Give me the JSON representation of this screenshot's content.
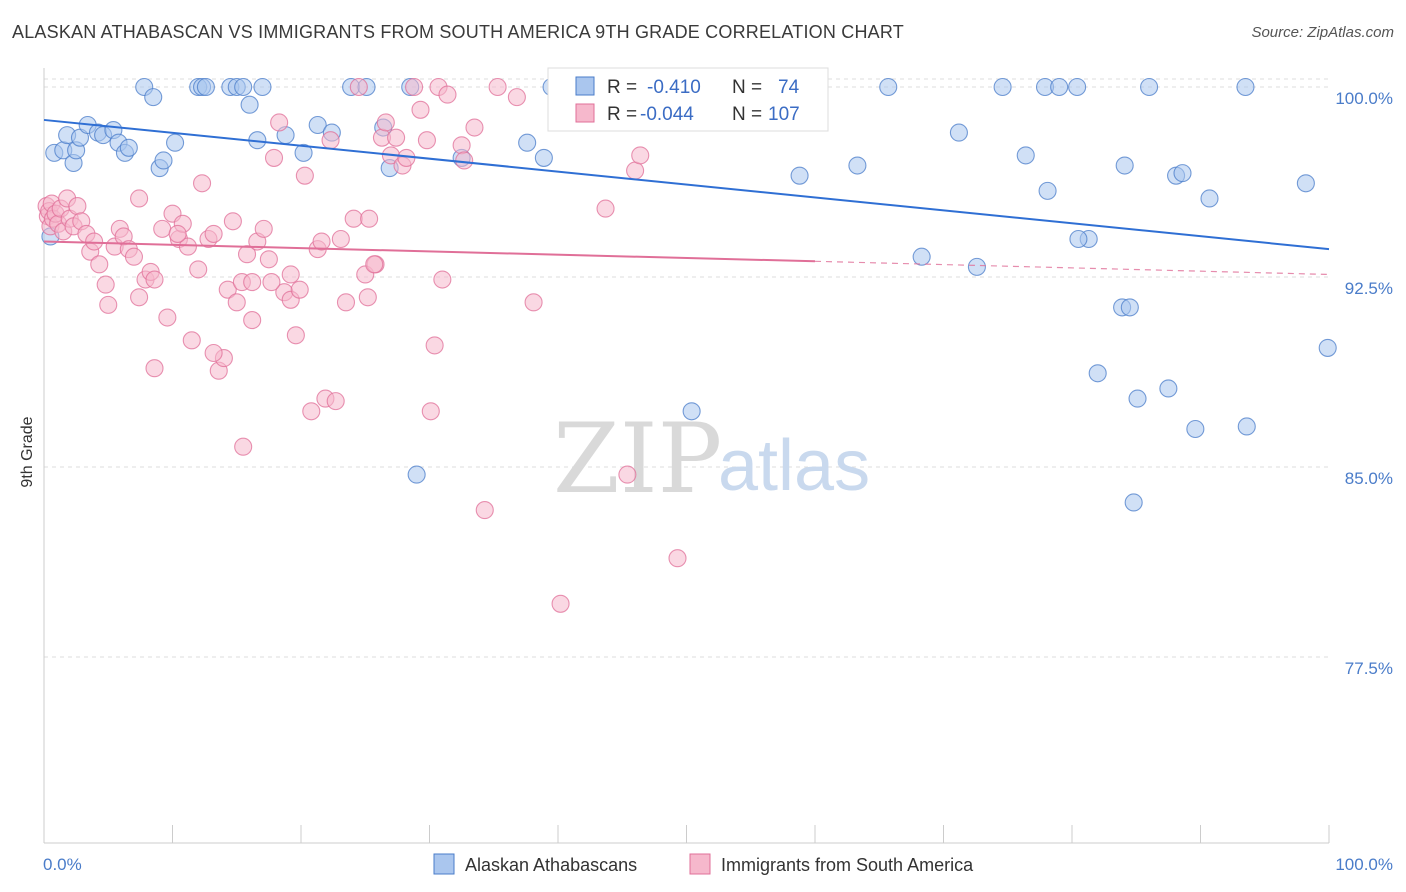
{
  "header": {
    "title": "ALASKAN ATHABASCAN VS IMMIGRANTS FROM SOUTH AMERICA 9TH GRADE CORRELATION CHART",
    "source": "Source: ZipAtlas.com"
  },
  "watermark": {
    "zip": "ZIP",
    "atlas": "atlas"
  },
  "colors": {
    "blue": "#4a7cc9",
    "blue_fill": "#aac6ee",
    "blue_line": "#2f6fd4",
    "pink": "#e06f98",
    "pink_fill": "#f6b8cc",
    "pink_line": "#e06f98",
    "grid": "#dddddd"
  },
  "stats": {
    "blue": {
      "r_label": "R =",
      "r_value": "-0.410",
      "n_label": "N =",
      "n_value": "74"
    },
    "pink": {
      "r_label": "R =",
      "r_value": "-0.044",
      "n_label": "N =",
      "n_value": "107"
    }
  },
  "chart_data": {
    "type": "scatter",
    "xlabel": "",
    "ylabel": "9th Grade",
    "xlim": [
      0,
      100
    ],
    "ylim": [
      70.0,
      100.7
    ],
    "x_tick_labels": [
      "0.0%",
      "100.0%"
    ],
    "y_ticks": [
      {
        "value": 100.0,
        "label": "100.0%"
      },
      {
        "value": 92.5,
        "label": "92.5%"
      },
      {
        "value": 85.0,
        "label": "85.0%"
      },
      {
        "value": 77.5,
        "label": "77.5%"
      }
    ],
    "grid": true,
    "legend_position": "bottom-center",
    "series": [
      {
        "name": "Alaskan Athabascans",
        "color": "#4a7cc9",
        "trend": {
          "x0": 0,
          "y0": 98.7,
          "x1": 100,
          "y1": 93.6,
          "solid_until": 100
        },
        "points": [
          [
            0.5,
            94.1
          ],
          [
            0.8,
            97.4
          ],
          [
            1.5,
            97.5
          ],
          [
            1.8,
            98.1
          ],
          [
            2.3,
            97.0
          ],
          [
            2.5,
            97.5
          ],
          [
            2.8,
            98.0
          ],
          [
            3.4,
            98.5
          ],
          [
            4.2,
            98.2
          ],
          [
            4.6,
            98.1
          ],
          [
            5.4,
            98.3
          ],
          [
            5.8,
            97.8
          ],
          [
            6.3,
            97.4
          ],
          [
            6.6,
            97.6
          ],
          [
            7.8,
            100.0
          ],
          [
            8.5,
            99.6
          ],
          [
            9.0,
            96.8
          ],
          [
            9.3,
            97.1
          ],
          [
            10.2,
            97.8
          ],
          [
            12.0,
            100.0
          ],
          [
            12.3,
            100.0
          ],
          [
            12.6,
            100.0
          ],
          [
            14.5,
            100.0
          ],
          [
            15.0,
            100.0
          ],
          [
            15.5,
            100.0
          ],
          [
            16.0,
            99.3
          ],
          [
            17.0,
            100.0
          ],
          [
            16.6,
            97.9
          ],
          [
            18.8,
            98.1
          ],
          [
            20.2,
            97.4
          ],
          [
            21.3,
            98.5
          ],
          [
            22.4,
            98.2
          ],
          [
            23.9,
            100.0
          ],
          [
            25.1,
            100.0
          ],
          [
            26.4,
            98.4
          ],
          [
            26.9,
            96.8
          ],
          [
            28.5,
            100.0
          ],
          [
            32.5,
            97.2
          ],
          [
            37.6,
            97.8
          ],
          [
            38.9,
            97.2
          ],
          [
            39.5,
            100.0
          ],
          [
            41.7,
            100.0
          ],
          [
            53.2,
            100.0
          ],
          [
            58.8,
            96.5
          ],
          [
            63.3,
            96.9
          ],
          [
            71.2,
            98.2
          ],
          [
            74.6,
            100.0
          ],
          [
            77.9,
            100.0
          ],
          [
            79.0,
            100.0
          ],
          [
            80.4,
            100.0
          ],
          [
            84.1,
            96.9
          ],
          [
            88.1,
            96.5
          ],
          [
            90.7,
            95.6
          ],
          [
            93.5,
            100.0
          ],
          [
            98.2,
            96.2
          ],
          [
            29.0,
            84.7
          ],
          [
            50.4,
            87.2
          ],
          [
            65.7,
            100.0
          ],
          [
            76.4,
            97.3
          ],
          [
            78.1,
            95.9
          ],
          [
            72.6,
            92.9
          ],
          [
            68.3,
            93.3
          ],
          [
            81.3,
            94.0
          ],
          [
            86.0,
            100.0
          ],
          [
            83.9,
            91.3
          ],
          [
            84.5,
            91.3
          ],
          [
            82.0,
            88.7
          ],
          [
            85.1,
            87.7
          ],
          [
            89.6,
            86.5
          ],
          [
            87.5,
            88.1
          ],
          [
            93.6,
            86.6
          ],
          [
            80.5,
            94.0
          ],
          [
            99.9,
            89.7
          ],
          [
            88.6,
            96.6
          ],
          [
            84.8,
            83.6
          ]
        ]
      },
      {
        "name": "Immigrants from South America",
        "color": "#e06f98",
        "trend": {
          "x0": 0,
          "y0": 93.9,
          "x1": 100,
          "y1": 92.6,
          "solid_until": 60
        },
        "points": [
          [
            0.2,
            95.3
          ],
          [
            0.3,
            94.9
          ],
          [
            0.4,
            95.1
          ],
          [
            0.5,
            94.5
          ],
          [
            0.6,
            95.4
          ],
          [
            0.7,
            94.8
          ],
          [
            0.9,
            95.0
          ],
          [
            1.1,
            94.6
          ],
          [
            1.3,
            95.2
          ],
          [
            1.5,
            94.3
          ],
          [
            1.8,
            95.6
          ],
          [
            2.0,
            94.8
          ],
          [
            2.3,
            94.5
          ],
          [
            2.6,
            95.3
          ],
          [
            2.9,
            94.7
          ],
          [
            3.3,
            94.2
          ],
          [
            3.6,
            93.5
          ],
          [
            3.9,
            93.9
          ],
          [
            4.3,
            93.0
          ],
          [
            4.8,
            92.2
          ],
          [
            5.0,
            91.4
          ],
          [
            5.5,
            93.7
          ],
          [
            5.9,
            94.4
          ],
          [
            6.2,
            94.1
          ],
          [
            6.6,
            93.6
          ],
          [
            7.0,
            93.3
          ],
          [
            7.4,
            91.7
          ],
          [
            7.9,
            92.4
          ],
          [
            8.3,
            92.7
          ],
          [
            8.6,
            88.9
          ],
          [
            9.2,
            94.4
          ],
          [
            9.6,
            90.9
          ],
          [
            10.0,
            95.0
          ],
          [
            10.5,
            94.0
          ],
          [
            10.8,
            94.6
          ],
          [
            11.2,
            93.7
          ],
          [
            11.5,
            90.0
          ],
          [
            12.0,
            92.8
          ],
          [
            12.3,
            96.2
          ],
          [
            12.8,
            94.0
          ],
          [
            13.2,
            94.2
          ],
          [
            13.6,
            88.8
          ],
          [
            14.0,
            89.3
          ],
          [
            14.3,
            92.0
          ],
          [
            14.7,
            94.7
          ],
          [
            15.0,
            91.5
          ],
          [
            15.4,
            92.3
          ],
          [
            15.8,
            93.4
          ],
          [
            16.2,
            92.3
          ],
          [
            16.6,
            93.9
          ],
          [
            17.1,
            94.4
          ],
          [
            17.5,
            93.2
          ],
          [
            17.9,
            97.2
          ],
          [
            18.3,
            98.6
          ],
          [
            18.7,
            91.9
          ],
          [
            19.2,
            91.6
          ],
          [
            19.6,
            90.2
          ],
          [
            19.9,
            92.0
          ],
          [
            20.3,
            96.5
          ],
          [
            20.8,
            87.2
          ],
          [
            21.3,
            93.6
          ],
          [
            21.6,
            93.9
          ],
          [
            21.9,
            87.7
          ],
          [
            22.3,
            97.9
          ],
          [
            22.7,
            87.6
          ],
          [
            23.1,
            94.0
          ],
          [
            23.5,
            91.5
          ],
          [
            24.1,
            94.8
          ],
          [
            24.5,
            100.0
          ],
          [
            25.0,
            92.6
          ],
          [
            25.3,
            94.8
          ],
          [
            25.8,
            93.0
          ],
          [
            26.3,
            98.0
          ],
          [
            26.6,
            98.6
          ],
          [
            27.0,
            97.3
          ],
          [
            27.4,
            98.0
          ],
          [
            27.9,
            96.9
          ],
          [
            28.2,
            97.2
          ],
          [
            28.8,
            100.0
          ],
          [
            29.3,
            99.1
          ],
          [
            30.1,
            87.2
          ],
          [
            30.7,
            100.0
          ],
          [
            31.4,
            99.7
          ],
          [
            32.5,
            97.7
          ],
          [
            32.7,
            97.1
          ],
          [
            33.5,
            98.4
          ],
          [
            35.3,
            100.0
          ],
          [
            36.8,
            99.6
          ],
          [
            38.1,
            91.5
          ],
          [
            43.7,
            95.2
          ],
          [
            45.4,
            84.7
          ],
          [
            46.0,
            96.7
          ],
          [
            46.4,
            97.3
          ],
          [
            49.3,
            81.4
          ],
          [
            40.2,
            79.6
          ],
          [
            34.3,
            83.3
          ],
          [
            7.4,
            95.6
          ],
          [
            8.6,
            92.4
          ],
          [
            10.4,
            94.2
          ],
          [
            13.2,
            89.5
          ],
          [
            16.2,
            90.8
          ],
          [
            17.7,
            92.3
          ],
          [
            15.5,
            85.8
          ],
          [
            19.2,
            92.6
          ],
          [
            25.2,
            91.7
          ],
          [
            25.7,
            93.0
          ],
          [
            29.8,
            97.9
          ],
          [
            30.4,
            89.8
          ],
          [
            31.0,
            92.4
          ]
        ]
      }
    ]
  }
}
